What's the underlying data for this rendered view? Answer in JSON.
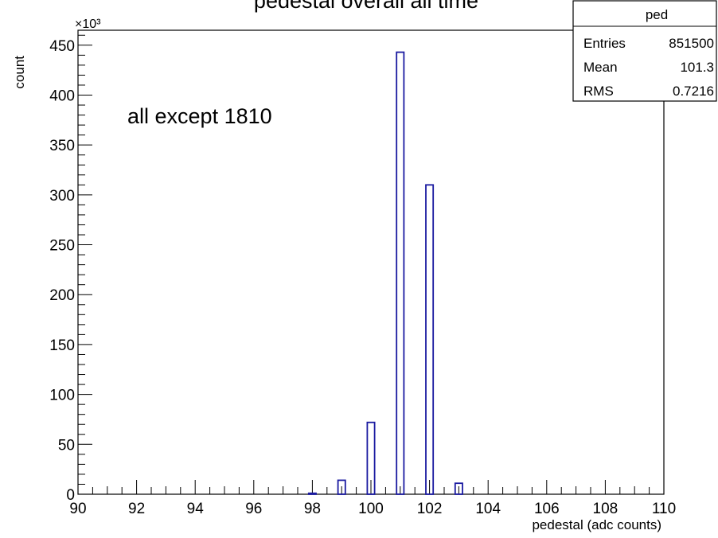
{
  "chart_data": {
    "type": "bar",
    "title": "pedestal overall all time",
    "xlabel": "pedestal (adc counts)",
    "ylabel": "count",
    "y_multiplier": "×10³",
    "xlim": [
      90,
      110
    ],
    "ylim": [
      0,
      465
    ],
    "y_unit_scale": 1000,
    "x_ticks": [
      90,
      92,
      94,
      96,
      98,
      100,
      102,
      104,
      106,
      108,
      110
    ],
    "y_ticks": [
      0,
      50,
      100,
      150,
      200,
      250,
      300,
      350,
      400,
      450
    ],
    "bin_width": 0.25,
    "bar_color": "#1a1aa0",
    "bins": [
      {
        "x": 98,
        "y": 1
      },
      {
        "x": 99,
        "y": 14
      },
      {
        "x": 100,
        "y": 72
      },
      {
        "x": 101,
        "y": 443
      },
      {
        "x": 102,
        "y": 310
      },
      {
        "x": 103,
        "y": 11
      }
    ],
    "annotation": "all except 1810",
    "stats_box": {
      "name": "ped",
      "rows": [
        {
          "label": "Entries",
          "value": "851500"
        },
        {
          "label": "Mean",
          "value": "101.3"
        },
        {
          "label": "RMS",
          "value": "0.7216"
        }
      ]
    },
    "grid": false
  }
}
